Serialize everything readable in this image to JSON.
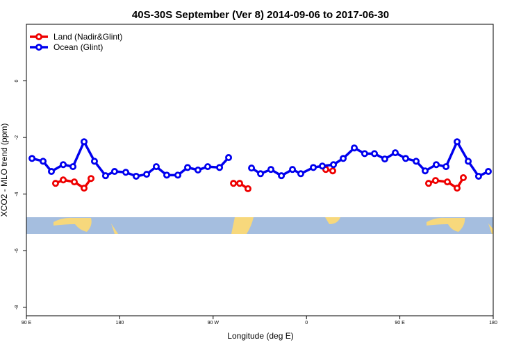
{
  "chart_data": {
    "type": "line",
    "title": "40S-30S September (Ver 8)   2014-09-06 to 2017-06-30",
    "x_label": "Longitude (deg E)",
    "y_label": "XCO2 - MLO trend (ppm)",
    "xlim": [
      90,
      540
    ],
    "ylim": [
      -8.3,
      2
    ],
    "xticks": [
      {
        "value": 90,
        "label": "90 E"
      },
      {
        "value": 180,
        "label": "180"
      },
      {
        "value": 270,
        "label": "90 W"
      },
      {
        "value": 360,
        "label": "0"
      },
      {
        "value": 450,
        "label": "90 E"
      },
      {
        "value": 540,
        "label": "180"
      }
    ],
    "yticks": [
      0,
      -2,
      -4,
      -6,
      -8
    ],
    "legend": "top-left",
    "series": [
      {
        "name": "Land (Nadir&Glint)",
        "color": "#ee0000",
        "x": [
          118.1,
          125.5,
          136.2,
          145.6,
          152.3,
          null,
          289.6,
          295.6,
          303.6,
          null,
          378.6,
          385.3,
          null,
          477.7,
          484.4,
          495.8,
          505.2,
          511.2
        ],
        "values": [
          -3.62,
          -3.5,
          -3.57,
          -3.79,
          -3.45,
          null,
          -3.62,
          -3.62,
          -3.81,
          null,
          -3.13,
          -3.18,
          null,
          -3.62,
          -3.52,
          -3.57,
          -3.79,
          -3.42
        ]
      },
      {
        "name": "Ocean (Glint)",
        "color": "#0000ee",
        "x": [
          95.4,
          106.1,
          114.1,
          125.5,
          134.9,
          145.6,
          155.6,
          166.3,
          175.0,
          185.8,
          195.8,
          205.9,
          215.2,
          225.3,
          236.0,
          245.4,
          255.4,
          264.8,
          276.2,
          284.9,
          null,
          307.0,
          315.7,
          325.7,
          335.8,
          346.5,
          354.5,
          366.6,
          375.3,
          386.0,
          395.4,
          406.1,
          416.1,
          425.5,
          435.5,
          445.6,
          455.6,
          465.7,
          474.4,
          485.1,
          494.5,
          505.2,
          515.9,
          525.9,
          535.3
        ],
        "values": [
          -2.74,
          -2.84,
          -3.2,
          -2.96,
          -3.03,
          -2.15,
          -2.84,
          -3.35,
          -3.2,
          -3.23,
          -3.37,
          -3.3,
          -3.03,
          -3.33,
          -3.33,
          -3.06,
          -3.15,
          -3.03,
          -3.06,
          -2.71,
          null,
          -3.08,
          -3.28,
          -3.13,
          -3.35,
          -3.13,
          -3.28,
          -3.06,
          -3.01,
          -2.96,
          -2.74,
          -2.37,
          -2.57,
          -2.57,
          -2.76,
          -2.54,
          -2.74,
          -2.84,
          -3.18,
          -2.96,
          -3.03,
          -2.15,
          -2.84,
          -3.37,
          -3.2
        ]
      }
    ]
  }
}
